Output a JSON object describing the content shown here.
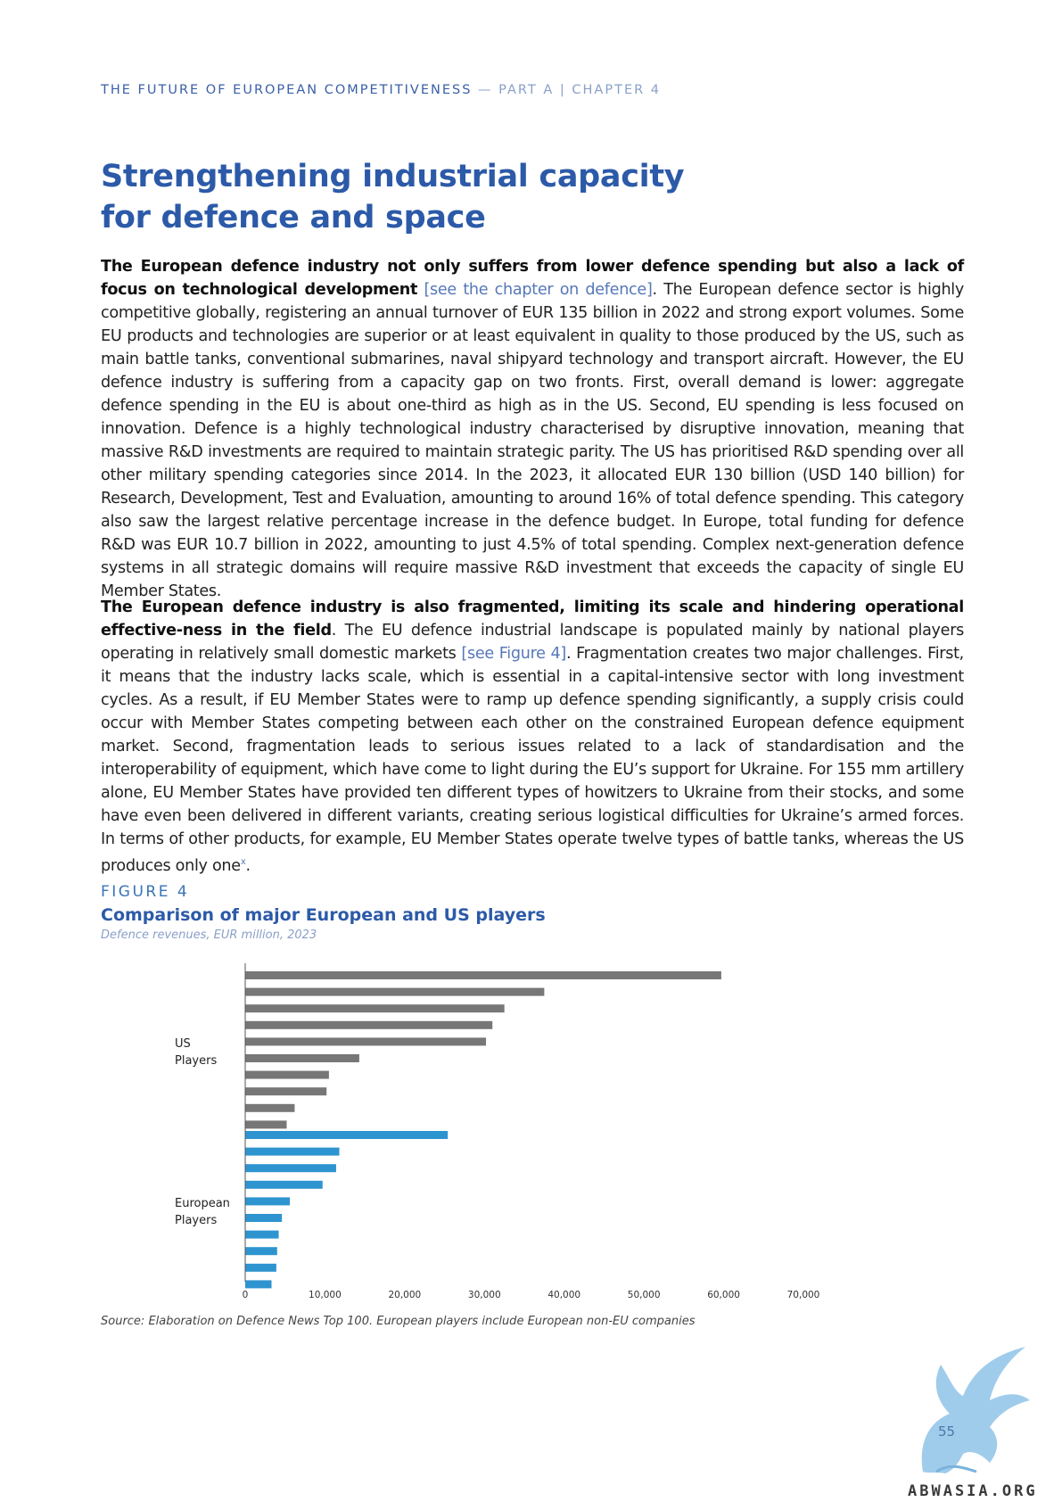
{
  "header": {
    "left": "THE FUTURE OF EUROPEAN COMPETITIVENESS",
    "dash": "—",
    "right": "PART A | CHAPTER 4"
  },
  "title": {
    "line1": "Strengthening industrial capacity",
    "line2": "for defence and space"
  },
  "paragraph1": {
    "bold": "The European defence industry not only suffers from lower defence spending but also a lack of focus on technological development",
    "link": "[see the chapter on defence]",
    "text": ". The European defence sector is highly competitive globally, registering an annual turnover of EUR 135 billion in 2022 and strong export volumes. Some EU products and technologies are superior or at least equivalent in quality to those produced by the US, such as main battle tanks, conventional submarines, naval shipyard technology and transport aircraft. However, the EU defence industry is suffering from a capacity gap on two fronts. First, overall demand is lower: aggregate defence spending in the EU is about one-third as high as in the US. Second, EU spending is less focused on innovation. Defence is a highly technological industry characterised by disruptive innovation, meaning that massive R&D investments are required to maintain strategic parity. The US has prioritised R&D spending over all other military spending categories since 2014. In the 2023, it allocated EUR 130 billion (USD 140 billion) for Research, Development, Test and Evaluation, amounting to around 16% of total defence spending. This category also saw the largest relative percentage increase in the defence budget. In Europe, total funding for defence R&D was EUR 10.7 billion in 2022, amounting to just 4.5% of total spending. Complex next-generation defence systems in all strategic domains will require massive R&D investment that exceeds the capacity of single EU Member States."
  },
  "paragraph2": {
    "bold": "The European defence industry is also fragmented, limiting its scale and hindering operational effective-ness in the field",
    "text_a": ". The EU defence industrial landscape is populated mainly by national players operating in relatively small domestic markets ",
    "link": "[see Figure 4]",
    "text_b": ". Fragmentation creates two major challenges. First, it means that the industry lacks scale, which is essential in a capital-intensive sector with long investment cycles. As a result, if EU Member States were to ramp up defence spending significantly, a supply crisis could occur with Member States competing between each other on the constrained European defence equipment market. Second, fragmentation leads to serious issues related to a lack of standardisation and the interoperability of equipment, which have come to light during the EU’s support for Ukraine. For 155 mm artillery alone, EU Member States have provided ten different types of howitzers to Ukraine from their stocks, and some have even been delivered in different variants, creating serious logistical difficulties for Ukraine’s armed forces. In terms of other products, for example, EU Member States operate twelve types of battle tanks, whereas the US produces only one",
    "footnote": "x",
    "text_c": "."
  },
  "figure": {
    "label": "FIGURE 4",
    "title": "Comparison of major European and US players",
    "subtitle": "Defence revenues, EUR million, 2023",
    "source": "Source: Elaboration on Defence News Top 100. European players include European non-EU companies"
  },
  "chart_data": {
    "type": "bar",
    "orientation": "horizontal",
    "groups": [
      {
        "label_line1": "US",
        "label_line2": "Players",
        "color": "#777777",
        "values": [
          59700,
          37500,
          32500,
          31000,
          30200,
          14300,
          10500,
          10200,
          6200,
          5200
        ]
      },
      {
        "label_line1": "European",
        "label_line2": "Players",
        "color": "#2e94d0",
        "values": [
          25400,
          11800,
          11400,
          9700,
          5600,
          4600,
          4200,
          4000,
          3900,
          3300
        ]
      }
    ],
    "xlim": [
      0,
      70000
    ],
    "xticks": [
      "0",
      "10,000",
      "20,000",
      "30,000",
      "40,000",
      "50,000",
      "60,000",
      "70,000"
    ],
    "grid": false
  },
  "page_number": "55",
  "watermark": "ABWASIA.ORG"
}
